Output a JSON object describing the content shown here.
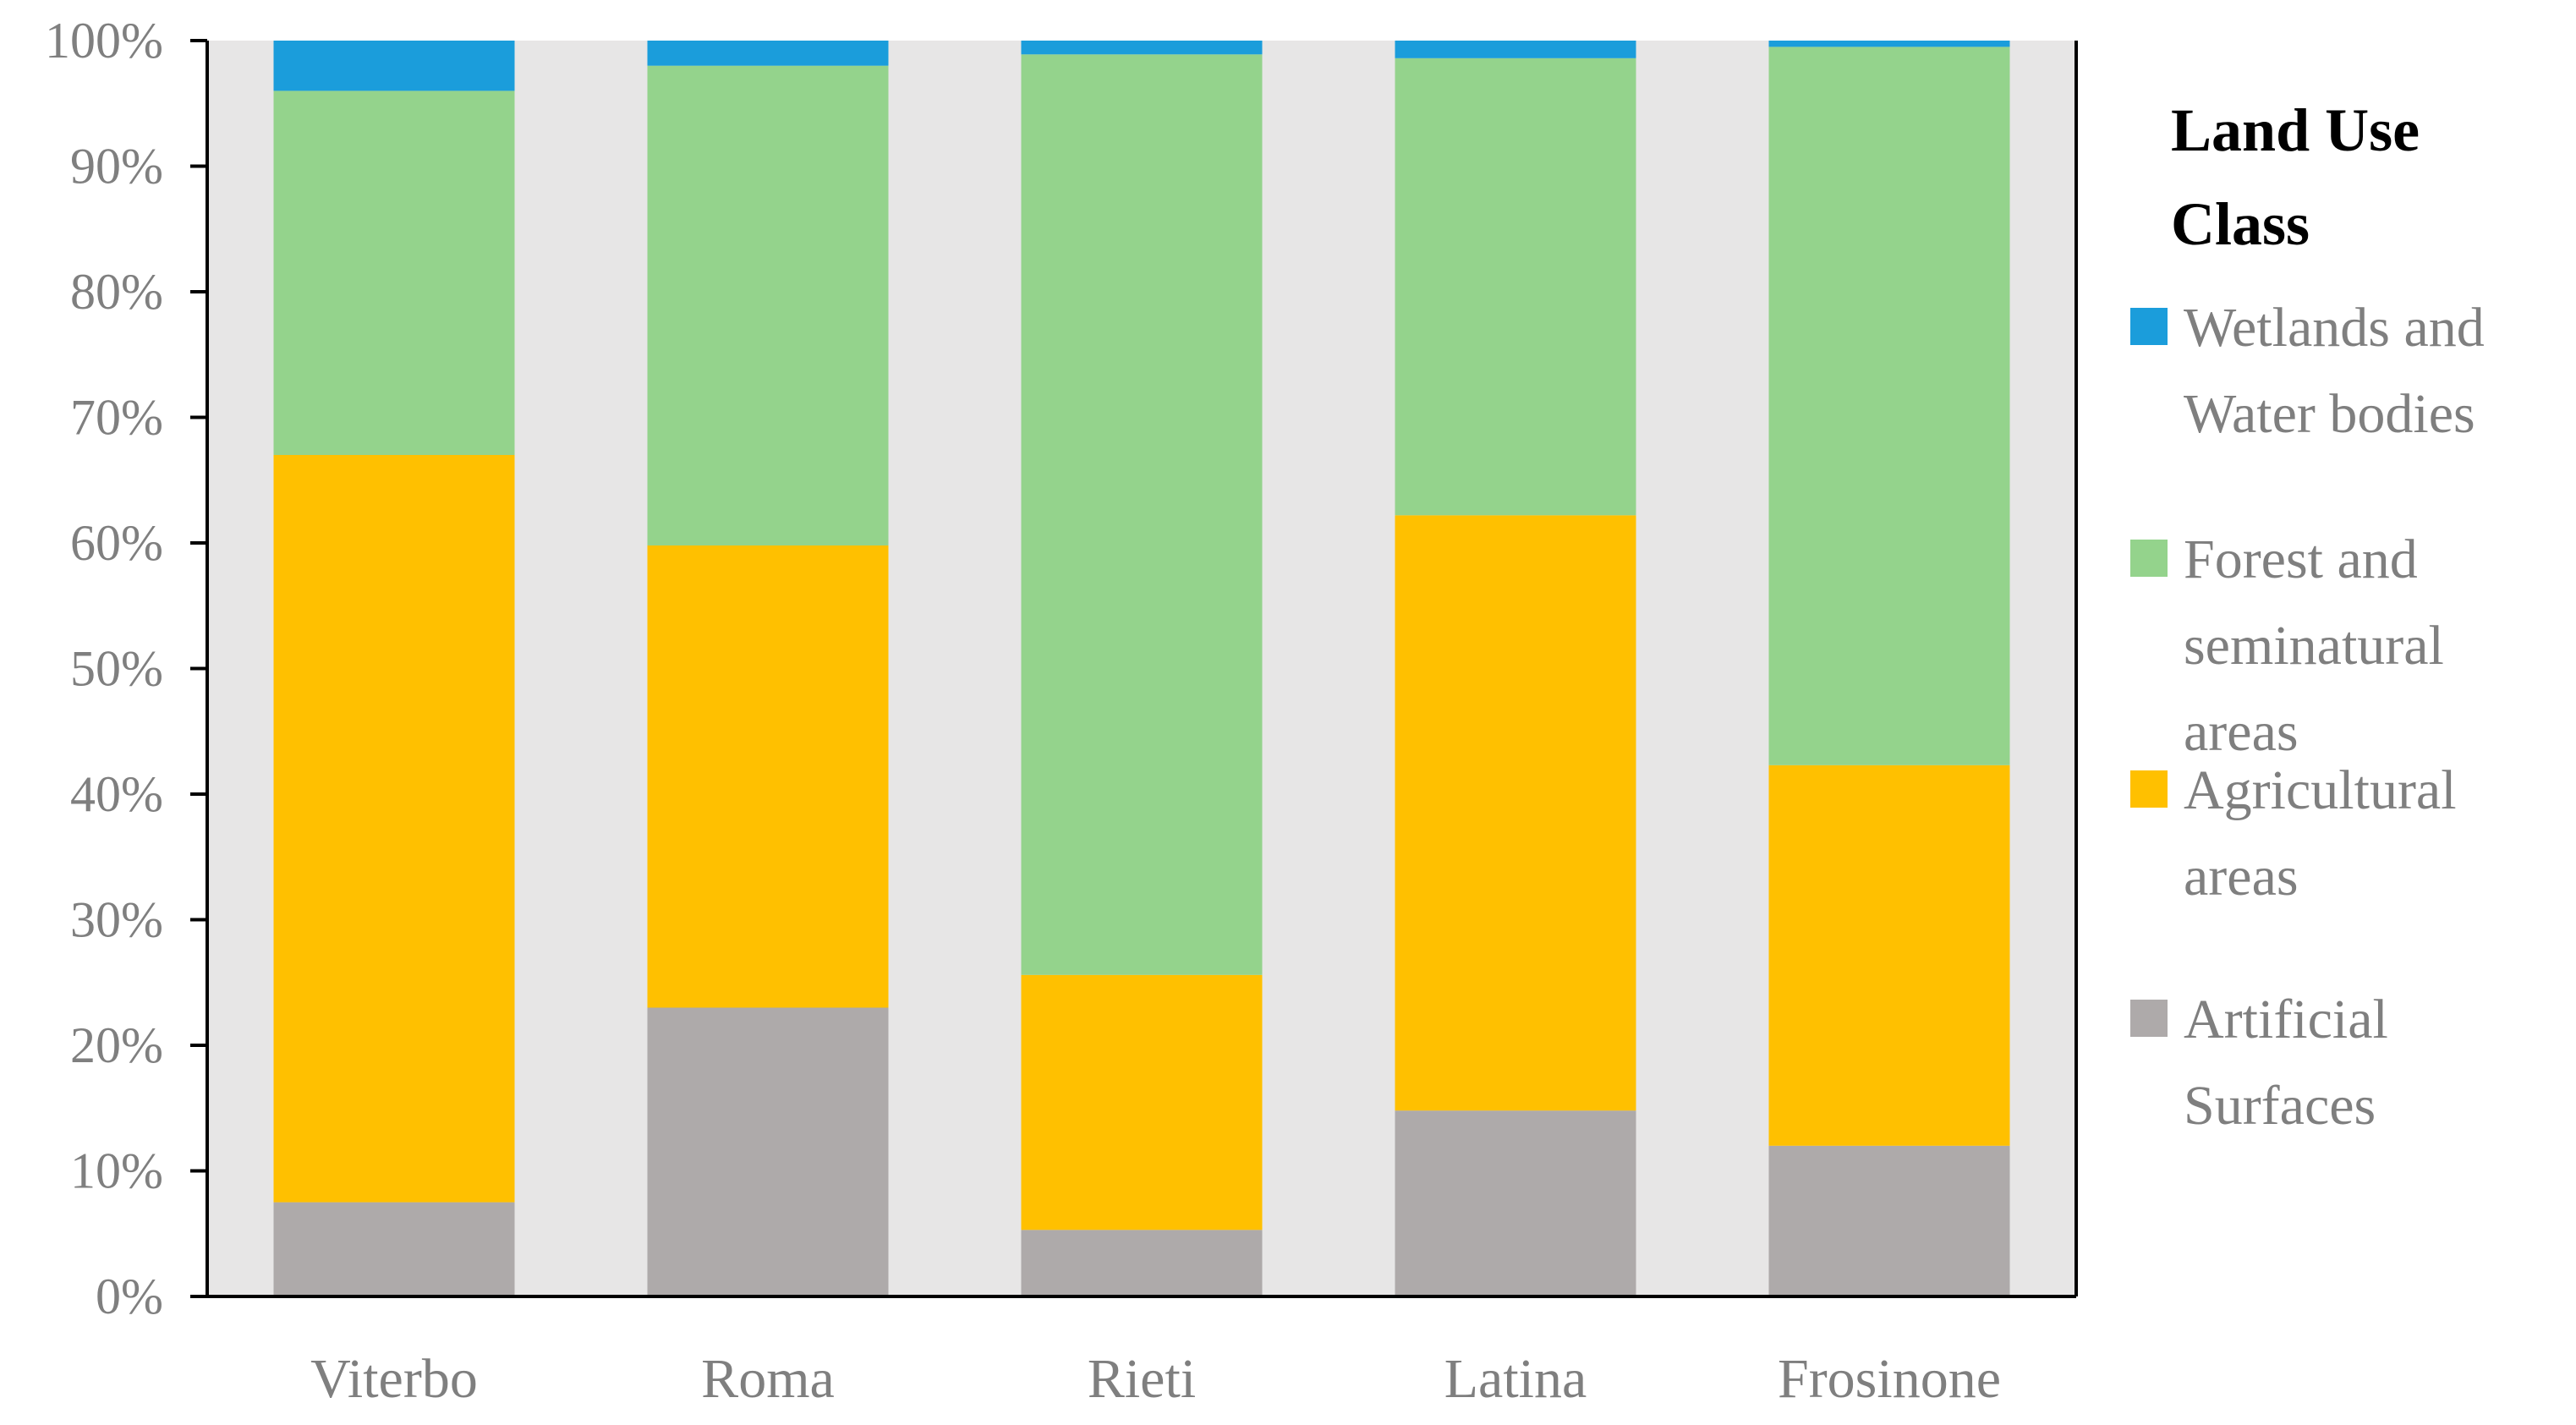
{
  "chart_data": {
    "type": "bar",
    "stacked": true,
    "categories": [
      "Viterbo",
      "Roma",
      "Rieti",
      "Latina",
      "Frosinone"
    ],
    "series": [
      {
        "name": "Artificial Surfaces",
        "color": "#AEAAAA",
        "values": [
          7.5,
          23.0,
          5.3,
          14.8,
          12.0
        ]
      },
      {
        "name": "Agricultural areas",
        "color": "#FFC000",
        "values": [
          59.5,
          36.8,
          20.3,
          47.4,
          30.3
        ]
      },
      {
        "name": "Forest and seminatural areas",
        "color": "#94D38C",
        "values": [
          29.0,
          38.2,
          73.3,
          36.4,
          57.2
        ]
      },
      {
        "name": "Wetlands and Water bodies",
        "color": "#1B9DDB",
        "values": [
          4.0,
          2.0,
          1.1,
          1.4,
          0.5
        ]
      }
    ],
    "y_ticks": [
      "0%",
      "10%",
      "20%",
      "30%",
      "40%",
      "50%",
      "60%",
      "70%",
      "80%",
      "90%",
      "100%"
    ],
    "ylim": [
      0,
      100
    ],
    "legend": {
      "title_lines": [
        "Land Use",
        "Class"
      ],
      "placement": "right",
      "items": [
        {
          "series_index": 3,
          "lines": [
            "Wetlands and",
            "Water bodies"
          ]
        },
        {
          "series_index": 2,
          "lines": [
            "Forest and",
            "seminatural",
            "areas"
          ]
        },
        {
          "series_index": 1,
          "lines": [
            "Agricultural",
            "areas"
          ]
        },
        {
          "series_index": 0,
          "lines": [
            "Artificial",
            "Surfaces"
          ]
        }
      ]
    },
    "plot_background": "#E7E6E6",
    "text_color": "#7F7F7F"
  }
}
